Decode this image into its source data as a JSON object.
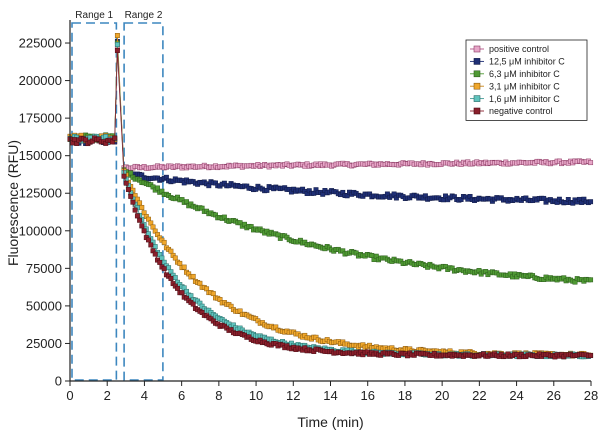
{
  "chart_data": {
    "type": "scatter",
    "xlabel": "Time (min)",
    "ylabel": "Fluorescence (RFU)",
    "xlim": [
      0,
      28
    ],
    "ylim": [
      0,
      237000
    ],
    "x_ticks": [
      "0",
      "2",
      "4",
      "6",
      "8",
      "10",
      "12",
      "14",
      "16",
      "18",
      "20",
      "22",
      "24",
      "26",
      "28"
    ],
    "y_ticks": [
      "0",
      "25000",
      "50000",
      "75000",
      "100000",
      "125000",
      "150000",
      "175000",
      "200000",
      "225000"
    ],
    "grid": false,
    "legend_position": "top-right",
    "annotations": [
      {
        "label": "Range 1",
        "x_start": 0,
        "x_end": 2.6
      },
      {
        "label": "Range 2",
        "x_start": 2.8,
        "x_end": 5.1
      }
    ],
    "series": [
      {
        "name": "positive control",
        "color": "#e7a6c8",
        "edge": "#8a3a63",
        "line": "#b44f86",
        "baseline": 161000,
        "spike": 222000,
        "after_start": 142000,
        "end_value": 150000,
        "tau": 40,
        "noise": 900
      },
      {
        "name": "12,5 μM inhibitor C",
        "color": "#1f2f75",
        "edge": "#111a45",
        "line": "#1f2f75",
        "baseline": 160000,
        "spike": 226000,
        "after_start": 138000,
        "end_value": 117000,
        "tau": 12,
        "noise": 1500
      },
      {
        "name": "6,3 μM inhibitor C",
        "color": "#4f9a33",
        "edge": "#2d5d1d",
        "line": "#4f9a33",
        "baseline": 162000,
        "spike": 225000,
        "after_start": 140000,
        "end_value": 58000,
        "tau": 11,
        "noise": 1300
      },
      {
        "name": "3,1 μM inhibitor C",
        "color": "#f0a72b",
        "edge": "#8a5a10",
        "line": "#c98518",
        "baseline": 162000,
        "spike": 230000,
        "after_start": 140000,
        "end_value": 17000,
        "tau": 4.3,
        "noise": 1100
      },
      {
        "name": "1,6 μM inhibitor C",
        "color": "#5fc3bd",
        "edge": "#2b6b67",
        "line": "#3e9a95",
        "baseline": 161000,
        "spike": 224000,
        "after_start": 139000,
        "end_value": 17000,
        "tau": 3.2,
        "noise": 1000
      },
      {
        "name": "negative control",
        "color": "#8a1f2b",
        "edge": "#4a0d14",
        "line": "#8a1f2b",
        "baseline": 160000,
        "spike": 220000,
        "after_start": 137000,
        "end_value": 17000,
        "tau": 2.9,
        "noise": 1000
      }
    ]
  },
  "colors": {
    "axis": "#222222",
    "range_box": "#3d87bf"
  }
}
